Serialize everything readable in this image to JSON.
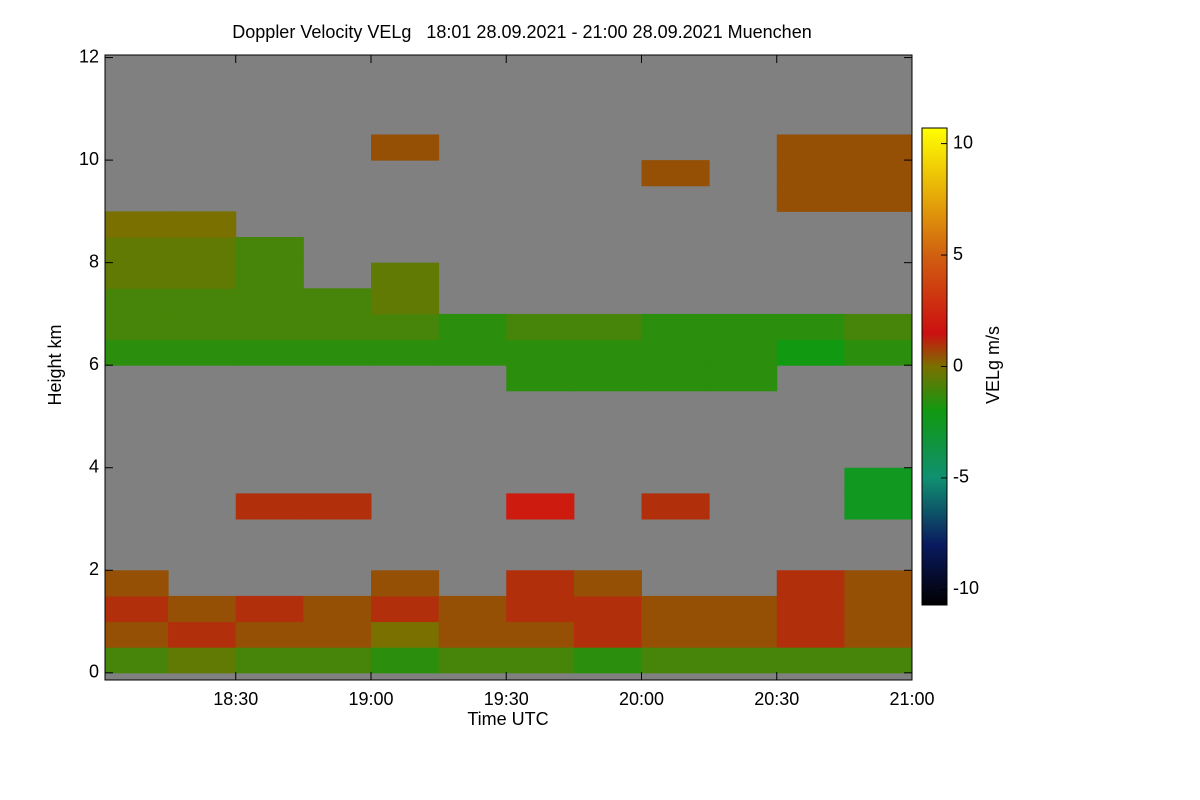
{
  "chart_data": {
    "type": "heatmap",
    "title": "Doppler Velocity VELg   18:01 28.09.2021 - 21:00 28.09.2021 Muenchen",
    "xlabel": "Time UTC",
    "ylabel": "Height km",
    "colorbar_label": "VELg m/s",
    "xlim": [
      18.0167,
      21.0
    ],
    "ylim": [
      -0.14,
      12.05
    ],
    "xticks": [
      {
        "value": 18.5,
        "label": "18:30"
      },
      {
        "value": 19.0,
        "label": "19:00"
      },
      {
        "value": 19.5,
        "label": "19:30"
      },
      {
        "value": 20.0,
        "label": "20:00"
      },
      {
        "value": 20.5,
        "label": "20:30"
      },
      {
        "value": 21.0,
        "label": "21:00"
      }
    ],
    "yticks": [
      0,
      2,
      4,
      6,
      8,
      10,
      12
    ],
    "clim": [
      -10.7,
      10.7
    ],
    "cticks": [
      -10,
      -5,
      0,
      5,
      10
    ],
    "background": "#808080",
    "colorscale": [
      [
        -10.7,
        "#000000"
      ],
      [
        -8,
        "#0a1a60"
      ],
      [
        -5,
        "#109070"
      ],
      [
        -2,
        "#119911"
      ],
      [
        0,
        "#7a7000"
      ],
      [
        1.5,
        "#cc1010"
      ],
      [
        5,
        "#d06010"
      ],
      [
        10.7,
        "#ffff00"
      ]
    ],
    "x_edges": [
      18.0,
      18.25,
      18.5,
      18.75,
      19.0,
      19.25,
      19.5,
      19.75,
      20.0,
      20.25,
      20.5,
      20.75,
      21.0
    ],
    "y_edges": [
      0,
      0.5,
      1,
      1.5,
      2,
      2.5,
      3,
      3.5,
      4,
      4.5,
      5,
      5.5,
      6,
      6.5,
      7,
      7.5,
      8,
      8.5,
      9,
      9.5,
      10,
      10.5,
      11,
      11.5,
      12
    ],
    "z": [
      [
        -1,
        -0.5,
        -1,
        -1,
        -1.5,
        -1,
        -1,
        -1.5,
        -1,
        -1,
        -1,
        -1
      ],
      [
        0.5,
        1,
        0.5,
        0.5,
        0,
        0.5,
        0.5,
        1,
        0.5,
        0.5,
        1,
        0.5
      ],
      [
        1,
        0.5,
        1,
        0.5,
        1,
        0.5,
        1,
        1,
        0.5,
        0.5,
        1,
        0.5
      ],
      [
        0.5,
        null,
        null,
        null,
        0.5,
        null,
        1,
        0.5,
        null,
        null,
        1,
        0.5
      ],
      [
        null,
        null,
        null,
        null,
        null,
        null,
        null,
        null,
        null,
        null,
        null,
        null
      ],
      [
        null,
        null,
        null,
        null,
        null,
        null,
        null,
        null,
        null,
        null,
        null,
        null
      ],
      [
        null,
        null,
        1,
        1,
        null,
        null,
        2,
        null,
        1,
        null,
        null,
        -2.5
      ],
      [
        null,
        null,
        null,
        null,
        null,
        null,
        null,
        null,
        null,
        null,
        null,
        -2.5
      ],
      [
        null,
        null,
        null,
        null,
        null,
        null,
        null,
        null,
        null,
        null,
        null,
        null
      ],
      [
        null,
        null,
        null,
        null,
        null,
        null,
        null,
        null,
        null,
        null,
        null,
        null
      ],
      [
        null,
        null,
        null,
        null,
        null,
        null,
        null,
        null,
        null,
        null,
        null,
        null
      ],
      [
        null,
        null,
        null,
        null,
        null,
        null,
        -1.5,
        -1.5,
        -1.5,
        -1.5,
        null,
        null
      ],
      [
        -1.5,
        -1.5,
        -1.5,
        -1.5,
        -1.5,
        -1.5,
        -1.5,
        -1.5,
        -1.5,
        -1.5,
        -2,
        -1.5
      ],
      [
        -1,
        -1,
        -1,
        -1,
        -1,
        -1.5,
        -1,
        -1,
        -1.5,
        -1.5,
        -1.5,
        -1
      ],
      [
        -1,
        -1,
        -1,
        -1,
        -0.5,
        null,
        null,
        null,
        null,
        null,
        null,
        null
      ],
      [
        -0.5,
        -0.5,
        -1,
        null,
        -0.5,
        null,
        null,
        null,
        null,
        null,
        null,
        null
      ],
      [
        -0.5,
        -0.5,
        -1,
        null,
        null,
        null,
        null,
        null,
        null,
        null,
        null,
        null
      ],
      [
        0,
        0,
        null,
        null,
        null,
        null,
        null,
        null,
        null,
        null,
        null,
        null
      ],
      [
        null,
        null,
        null,
        null,
        null,
        null,
        null,
        null,
        null,
        null,
        0.5,
        0.5
      ],
      [
        null,
        null,
        null,
        null,
        null,
        null,
        null,
        null,
        0.5,
        null,
        0.5,
        0.5
      ],
      [
        null,
        null,
        null,
        null,
        0.5,
        null,
        null,
        null,
        null,
        null,
        0.5,
        0.5
      ],
      [
        null,
        null,
        null,
        null,
        null,
        null,
        null,
        null,
        null,
        null,
        null,
        null
      ],
      [
        null,
        null,
        null,
        null,
        null,
        null,
        null,
        null,
        null,
        null,
        null,
        null
      ],
      [
        null,
        null,
        null,
        null,
        null,
        null,
        null,
        null,
        null,
        null,
        null,
        null
      ]
    ]
  }
}
